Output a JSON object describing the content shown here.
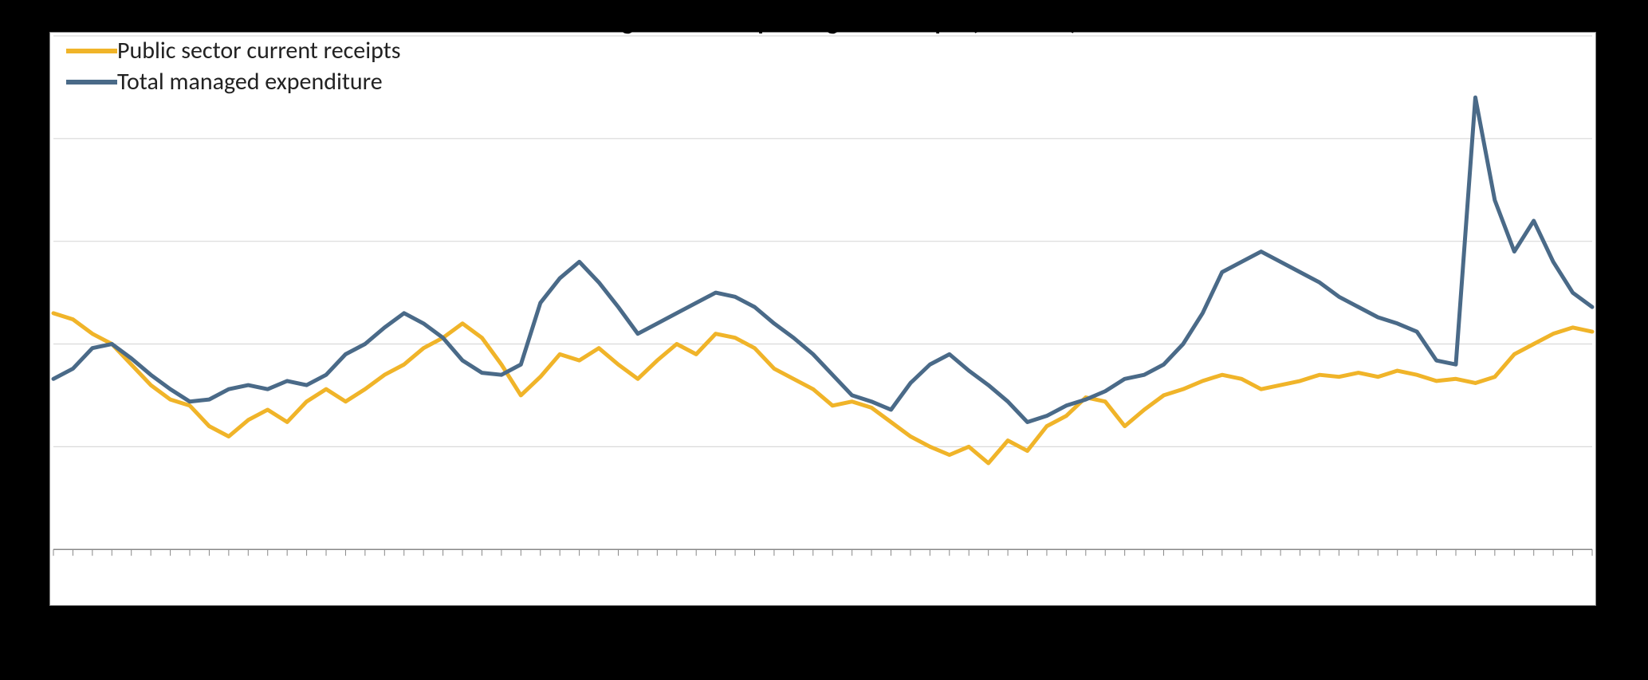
{
  "chart": {
    "type": "line",
    "title_fragment": "Total government spending and receipts (% of GDP)",
    "title_fontsize": 30,
    "background_color": "#ffffff",
    "border_color": "#888888",
    "grid_color": "#d9d9d9",
    "grid_line_width": 1.2,
    "axis_line_color": "#888888",
    "y_axis": {
      "min": 30,
      "max": 55,
      "gridlines": [
        30,
        35,
        40,
        45,
        50,
        55
      ]
    },
    "x_axis": {
      "count": 80,
      "tick_density": "dense"
    },
    "line_width": 5,
    "legend": {
      "position": "top-left",
      "label_fontsize": 30,
      "label_color": "#222222",
      "swatch_width": 64,
      "swatch_height": 6
    },
    "series": [
      {
        "id": "receipts",
        "label": "Public sector current receipts",
        "color": "#f0b429",
        "values": [
          41.5,
          41.2,
          40.5,
          40.0,
          39.0,
          38.0,
          37.3,
          37.0,
          36.0,
          35.5,
          36.3,
          36.8,
          36.2,
          37.2,
          37.8,
          37.2,
          37.8,
          38.5,
          39.0,
          39.8,
          40.3,
          41.0,
          40.3,
          39.0,
          37.5,
          38.4,
          39.5,
          39.2,
          39.8,
          39.0,
          38.3,
          39.2,
          40.0,
          39.5,
          40.5,
          40.3,
          39.8,
          38.8,
          38.3,
          37.8,
          37.0,
          37.2,
          36.9,
          36.2,
          35.5,
          35.0,
          34.6,
          35.0,
          34.2,
          35.3,
          34.8,
          36.0,
          36.5,
          37.4,
          37.2,
          36.0,
          36.8,
          37.5,
          37.8,
          38.2,
          38.5,
          38.3,
          37.8,
          38.0,
          38.2,
          38.5,
          38.4,
          38.6,
          38.4,
          38.7,
          38.5,
          38.2,
          38.3,
          38.1,
          38.4,
          39.5,
          40.0,
          40.5,
          40.8,
          40.6
        ]
      },
      {
        "id": "expenditure",
        "label": "Total managed expenditure",
        "color": "#4a6a88",
        "values": [
          38.3,
          38.8,
          39.8,
          40.0,
          39.3,
          38.5,
          37.8,
          37.2,
          37.3,
          37.8,
          38.0,
          37.8,
          38.2,
          38.0,
          38.5,
          39.5,
          40.0,
          40.8,
          41.5,
          41.0,
          40.3,
          39.2,
          38.6,
          38.5,
          39.0,
          42.0,
          43.2,
          44.0,
          43.0,
          41.8,
          40.5,
          41.0,
          41.5,
          42.0,
          42.5,
          42.3,
          41.8,
          41.0,
          40.3,
          39.5,
          38.5,
          37.5,
          37.2,
          36.8,
          38.1,
          39.0,
          39.5,
          38.7,
          38.0,
          37.2,
          36.2,
          36.5,
          37.0,
          37.3,
          37.7,
          38.3,
          38.5,
          39.0,
          40.0,
          41.5,
          43.5,
          44.0,
          44.5,
          44.0,
          43.5,
          43.0,
          42.3,
          41.8,
          41.3,
          41.0,
          40.6,
          39.2,
          39.0,
          52.0,
          47.0,
          44.5,
          46.0,
          44.0,
          42.5,
          41.8
        ]
      }
    ]
  }
}
